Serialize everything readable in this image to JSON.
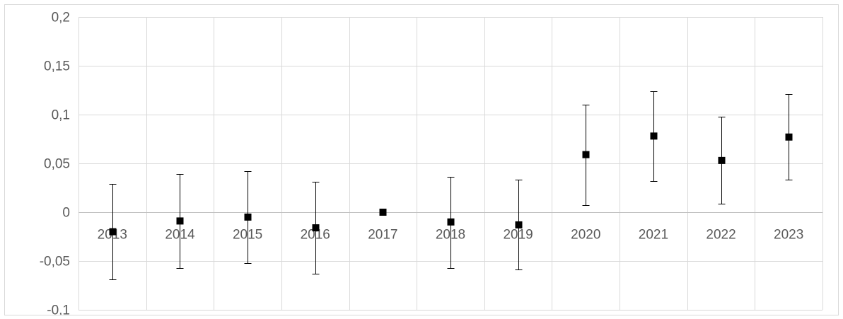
{
  "chart_data": {
    "type": "scatter",
    "title": "",
    "xlabel": "",
    "ylabel": "",
    "categories": [
      "2013",
      "2014",
      "2015",
      "2016",
      "2017",
      "2018",
      "2019",
      "2020",
      "2021",
      "2022",
      "2023"
    ],
    "series": [
      {
        "values": [
          -0.02,
          -0.009,
          -0.005,
          -0.016,
          0.0,
          -0.01,
          -0.013,
          0.059,
          0.078,
          0.053,
          0.077
        ],
        "error_low": [
          -0.069,
          -0.057,
          -0.052,
          -0.063,
          0.0,
          -0.057,
          -0.059,
          0.007,
          0.032,
          0.009,
          0.033
        ],
        "error_high": [
          0.029,
          0.039,
          0.042,
          0.031,
          0.0,
          0.036,
          0.033,
          0.11,
          0.124,
          0.098,
          0.121
        ],
        "marker": "square",
        "color": "#000000"
      }
    ],
    "ylim": [
      -0.1,
      0.2
    ],
    "yticks": [
      -0.1,
      -0.05,
      0,
      0.05,
      0.1,
      0.15,
      0.2
    ],
    "ytick_labels": [
      "-0,1",
      "-0,05",
      "0",
      "0,05",
      "0,1",
      "0,15",
      "0,2"
    ],
    "grid": true,
    "legend": "none",
    "colors": {
      "grid": "#d9d9d9",
      "axis": "#bfbfbf",
      "text": "#595959",
      "marker": "#000000"
    }
  }
}
